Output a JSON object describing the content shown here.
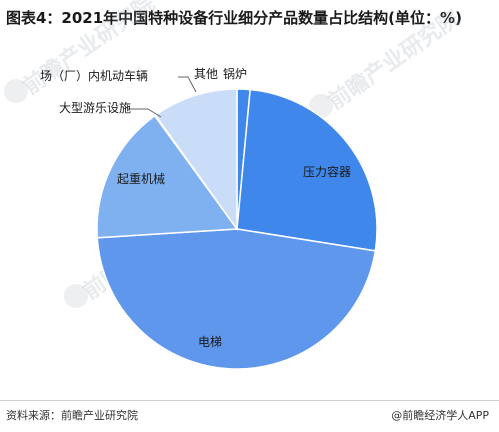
{
  "title": "图表4：2021年中国特种设备行业细分产品数量占比结构(单位：%)",
  "footer": {
    "source": "资料来源：前瞻产业研究院",
    "brand": "@前瞻经济学人APP"
  },
  "watermark": {
    "text": "前瞻产业研究院",
    "icon": "qianzhan-logo-icon"
  },
  "chart_data": {
    "type": "pie",
    "title": "图表4：2021年中国特种设备行业细分产品数量占比结构(单位：%)",
    "start_angle_deg": 0,
    "direction": "clockwise",
    "series": [
      {
        "label": "锅炉",
        "value": 1.5,
        "color": "#3f87ea"
      },
      {
        "label": "压力容器",
        "value": 26.0,
        "color": "#3f87ea"
      },
      {
        "label": "电梯",
        "value": 46.5,
        "color": "#5f97ec"
      },
      {
        "label": "起重机械",
        "value": 16.0,
        "color": "#7fb0f0"
      },
      {
        "label": "大型游乐设施",
        "value": 0.1,
        "color": "#a9caf5"
      },
      {
        "label": "场（厂）内机动车辆",
        "value": 9.9,
        "color": "#c9ddf9"
      },
      {
        "label": "其他",
        "value": 0.0,
        "color": "#3f87ea"
      }
    ]
  }
}
